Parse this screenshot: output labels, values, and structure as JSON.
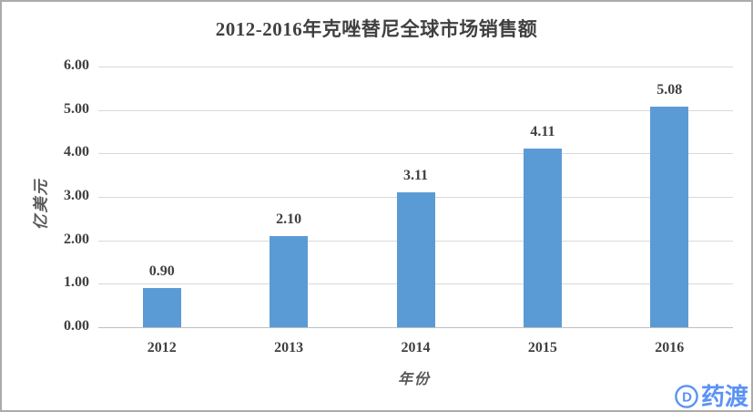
{
  "chart_data": {
    "type": "bar",
    "title": "2012-2016年克唑替尼全球市场销售额",
    "categories": [
      "2012",
      "2013",
      "2014",
      "2015",
      "2016"
    ],
    "values": [
      0.9,
      2.1,
      3.11,
      4.11,
      5.08
    ],
    "value_labels": [
      "0.90",
      "2.10",
      "3.11",
      "4.11",
      "5.08"
    ],
    "xlabel": "年份",
    "ylabel": "亿美元",
    "ylim": [
      0,
      6
    ],
    "yticks": [
      "0.00",
      "1.00",
      "2.00",
      "3.00",
      "4.00",
      "5.00",
      "6.00"
    ],
    "grid": true,
    "legend": "none",
    "bar_color": "#5b9bd5",
    "gridline_color": "#d9d9d9",
    "axis_line_color": "#bfbfbf",
    "title_color": "#404040",
    "tick_color": "#404040",
    "axis_title_color": "#595959"
  },
  "watermark": {
    "text": "药渡",
    "icon": "pharmacodia-circle-d-icon",
    "color": "#5b92f4"
  }
}
